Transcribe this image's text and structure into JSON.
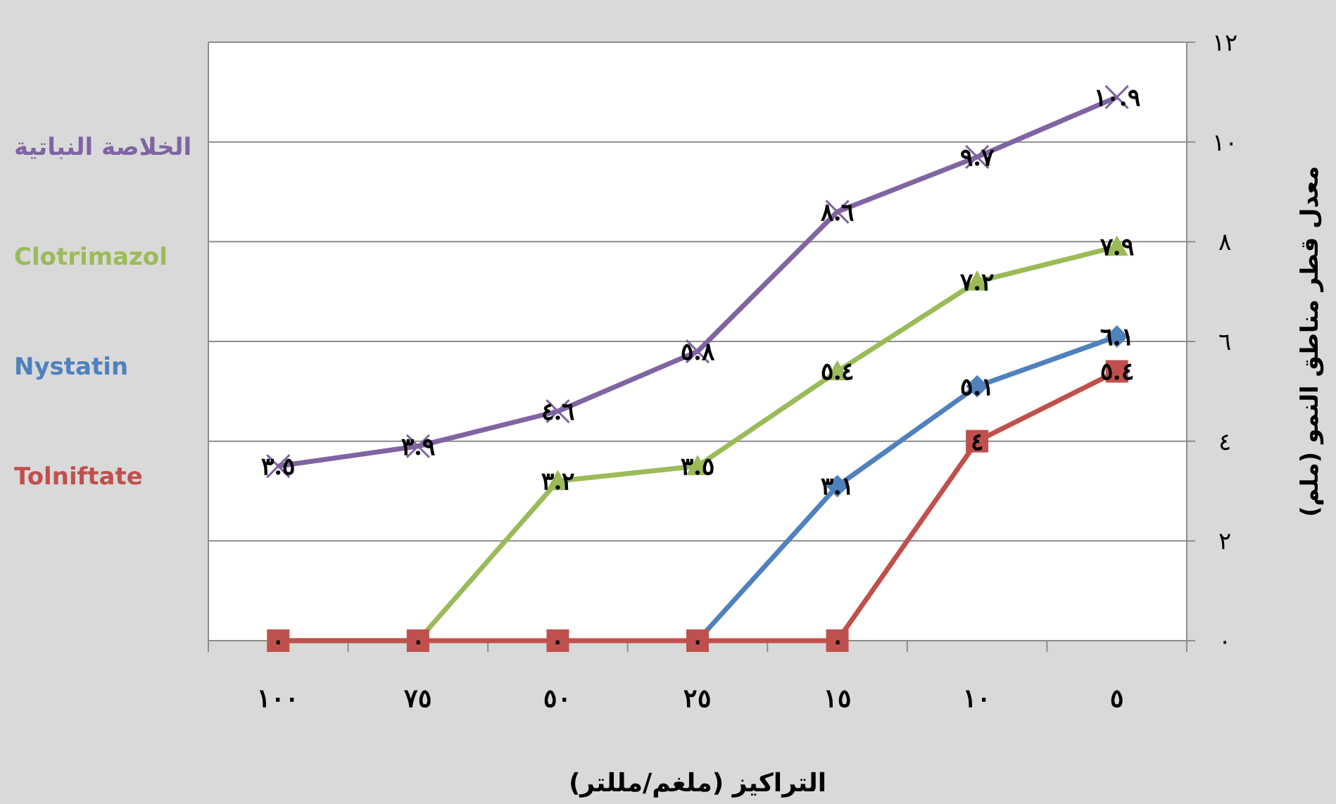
{
  "chart_data": {
    "type": "line",
    "categories": [
      "١٠٠",
      "٧٥",
      "٥٠",
      "٢٥",
      "١٥",
      "١٠",
      "٥"
    ],
    "xlabel": "التراكيز (ملغم/مللتر)",
    "ylabel": "معدل قطر مناطق النمو (ملم)",
    "ylim": [
      0,
      12
    ],
    "yticks": [
      {
        "value": 0,
        "label": "٠"
      },
      {
        "value": 2,
        "label": "٢"
      },
      {
        "value": 4,
        "label": "٤"
      },
      {
        "value": 6,
        "label": "٦"
      },
      {
        "value": 8,
        "label": "٨"
      },
      {
        "value": 10,
        "label": "١٠"
      },
      {
        "value": 12,
        "label": "١٢"
      }
    ],
    "grid": "y",
    "legend": "left",
    "series": [
      {
        "name": "الخلاصة النباتية",
        "color": "#8064a2",
        "marker": "cross",
        "values": [
          3.5,
          3.9,
          4.6,
          5.8,
          8.6,
          9.7,
          10.9
        ],
        "value_labels": [
          "٣.٥",
          "٣.٩",
          "٤.٦",
          "٥.٨",
          "٨.٦",
          "٩.٧",
          "١٠.٩"
        ]
      },
      {
        "name": "Clotrimazol",
        "color": "#9bbb59",
        "marker": "triangle",
        "values": [
          0,
          0,
          3.2,
          3.5,
          5.4,
          7.2,
          7.9
        ],
        "value_labels": [
          null,
          null,
          "٣.٢",
          "٣.٥",
          "٥.٤",
          "٧.٢",
          "٧.٩"
        ]
      },
      {
        "name": "Nystatin",
        "color": "#4f81bd",
        "marker": "diamond",
        "values": [
          null,
          null,
          null,
          0,
          3.1,
          5.1,
          6.1
        ],
        "value_labels": [
          null,
          null,
          null,
          null,
          "٣.١",
          "٥.١",
          "٦.١"
        ]
      },
      {
        "name": "Tolniftate",
        "color": "#c0504d",
        "marker": "square",
        "values": [
          0,
          0,
          0,
          0,
          0,
          4,
          5.4
        ],
        "value_labels": [
          "٠",
          "٠",
          "٠",
          "٠",
          "٠",
          "٤",
          "٥.٤"
        ]
      }
    ]
  }
}
